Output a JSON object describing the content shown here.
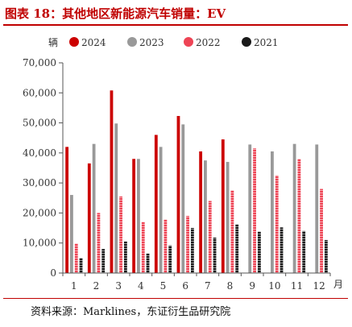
{
  "figure_title": "图表 18：其他地区新能源汽车销量：EV",
  "source": "资料来源：Marklines，东证衍生品研究院",
  "chart_data": {
    "type": "bar",
    "title": "图表 18：其他地区新能源汽车销量：EV",
    "ylabel": "辆",
    "xlabel": "月",
    "categories": [
      "1",
      "2",
      "3",
      "4",
      "5",
      "6",
      "7",
      "8",
      "9",
      "10",
      "11",
      "12"
    ],
    "y_ticks": [
      "0",
      "10,000",
      "20,000",
      "30,000",
      "40,000",
      "50,000",
      "60,000",
      "70,000"
    ],
    "ylim": [
      0,
      70000
    ],
    "grid": false,
    "legend_position": "top",
    "series": [
      {
        "name": "2024",
        "color": "#cc0000",
        "pattern": "solid",
        "values": [
          42000,
          36500,
          60800,
          38000,
          46000,
          52300,
          40500,
          44500,
          null,
          null,
          null,
          null
        ]
      },
      {
        "name": "2023",
        "color": "#999999",
        "pattern": "solid",
        "values": [
          26000,
          43000,
          49800,
          38000,
          42000,
          49500,
          37500,
          37000,
          42800,
          40500,
          43000,
          42800
        ]
      },
      {
        "name": "2022",
        "color": "#ee4455",
        "pattern": "striped",
        "values": [
          9800,
          20000,
          25500,
          17000,
          17800,
          19000,
          24000,
          27500,
          41500,
          32500,
          38000,
          28000
        ]
      },
      {
        "name": "2021",
        "color": "#1a1a1a",
        "pattern": "striped",
        "values": [
          5000,
          8000,
          10500,
          6500,
          9200,
          15000,
          11800,
          16200,
          13800,
          15200,
          14000,
          11000
        ]
      }
    ]
  }
}
